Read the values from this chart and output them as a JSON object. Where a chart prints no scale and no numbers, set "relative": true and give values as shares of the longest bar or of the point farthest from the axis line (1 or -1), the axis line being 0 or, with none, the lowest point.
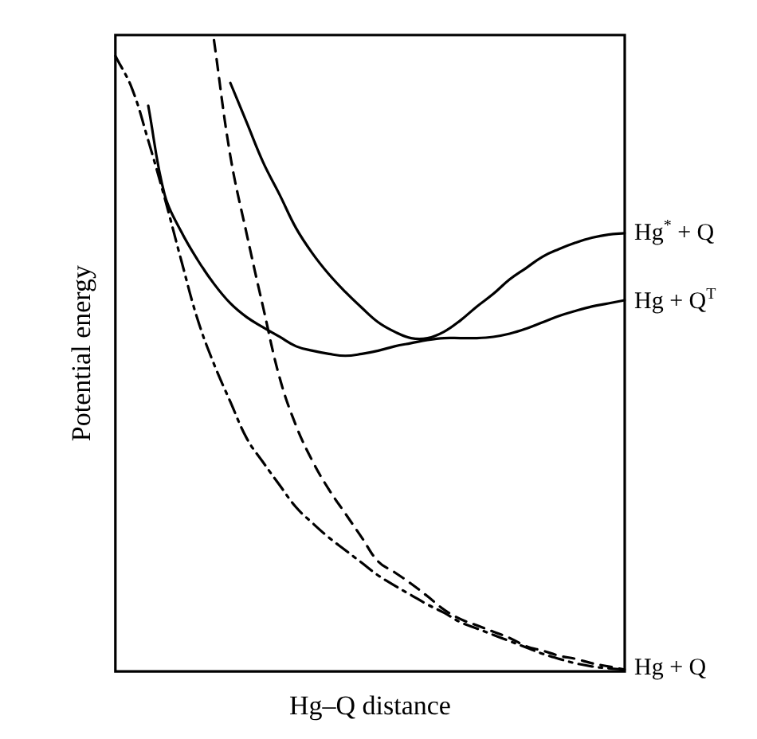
{
  "chart_data": {
    "type": "line",
    "xlabel": "Hg–Q distance",
    "ylabel": "Potential energy",
    "relative": true,
    "legend": false,
    "grid": false,
    "marker": "none",
    "tick_labels": false,
    "categories": [
      null,
      null,
      null,
      null,
      null,
      null,
      null,
      null,
      null,
      null,
      null,
      null,
      null,
      null,
      null,
      null,
      null,
      null,
      null,
      null,
      null,
      null,
      null,
      null,
      null,
      null,
      null,
      null,
      null,
      null,
      null,
      null
    ],
    "series": [
      {
        "name": "Hg$^{*}$ + Q",
        "color": "#000000",
        "line_style": "solid",
        "values": [
          null,
          null,
          null,
          null,
          null,
          null,
          null,
          0.932,
          0.869,
          0.806,
          0.755,
          0.702,
          0.662,
          0.629,
          0.601,
          0.576,
          0.553,
          0.538,
          0.528,
          0.528,
          0.538,
          0.556,
          0.578,
          0.598,
          0.621,
          0.639,
          0.657,
          0.669,
          0.679,
          0.687,
          0.692,
          0.694
        ]
      },
      {
        "name": "Hg + Q$^{T}$",
        "color": "#000000",
        "line_style": "solid",
        "values": [
          null,
          null,
          0.896,
          0.755,
          0.697,
          0.652,
          0.614,
          0.583,
          0.561,
          0.545,
          0.53,
          0.515,
          0.508,
          0.503,
          0.5,
          0.503,
          0.508,
          0.515,
          0.52,
          0.525,
          0.528,
          0.528,
          0.528,
          0.53,
          0.535,
          0.543,
          0.553,
          0.563,
          0.571,
          0.578,
          0.583,
          0.588
        ]
      },
      {
        "color": "#000000",
        "line_style": "dashed",
        "values": [
          null,
          null,
          null,
          null,
          null,
          null,
          1.0,
          0.816,
          0.692,
          0.576,
          0.465,
          0.389,
          0.333,
          0.288,
          0.25,
          0.212,
          0.174,
          0.157,
          0.139,
          0.119,
          0.098,
          0.083,
          0.073,
          0.063,
          0.053,
          0.04,
          0.033,
          0.025,
          0.02,
          0.013,
          0.008,
          0.003
        ]
      },
      {
        "name": "Hg + Q",
        "color": "#000000",
        "line_style": "dashdot",
        "values": [
          0.975,
          0.924,
          0.841,
          0.75,
          0.652,
          0.558,
          0.487,
          0.427,
          0.369,
          0.331,
          0.295,
          0.26,
          0.235,
          0.212,
          0.192,
          0.172,
          0.152,
          0.136,
          0.121,
          0.106,
          0.093,
          0.078,
          0.068,
          0.058,
          0.048,
          0.038,
          0.028,
          0.02,
          0.013,
          0.008,
          0.005,
          0.003
        ]
      }
    ]
  }
}
